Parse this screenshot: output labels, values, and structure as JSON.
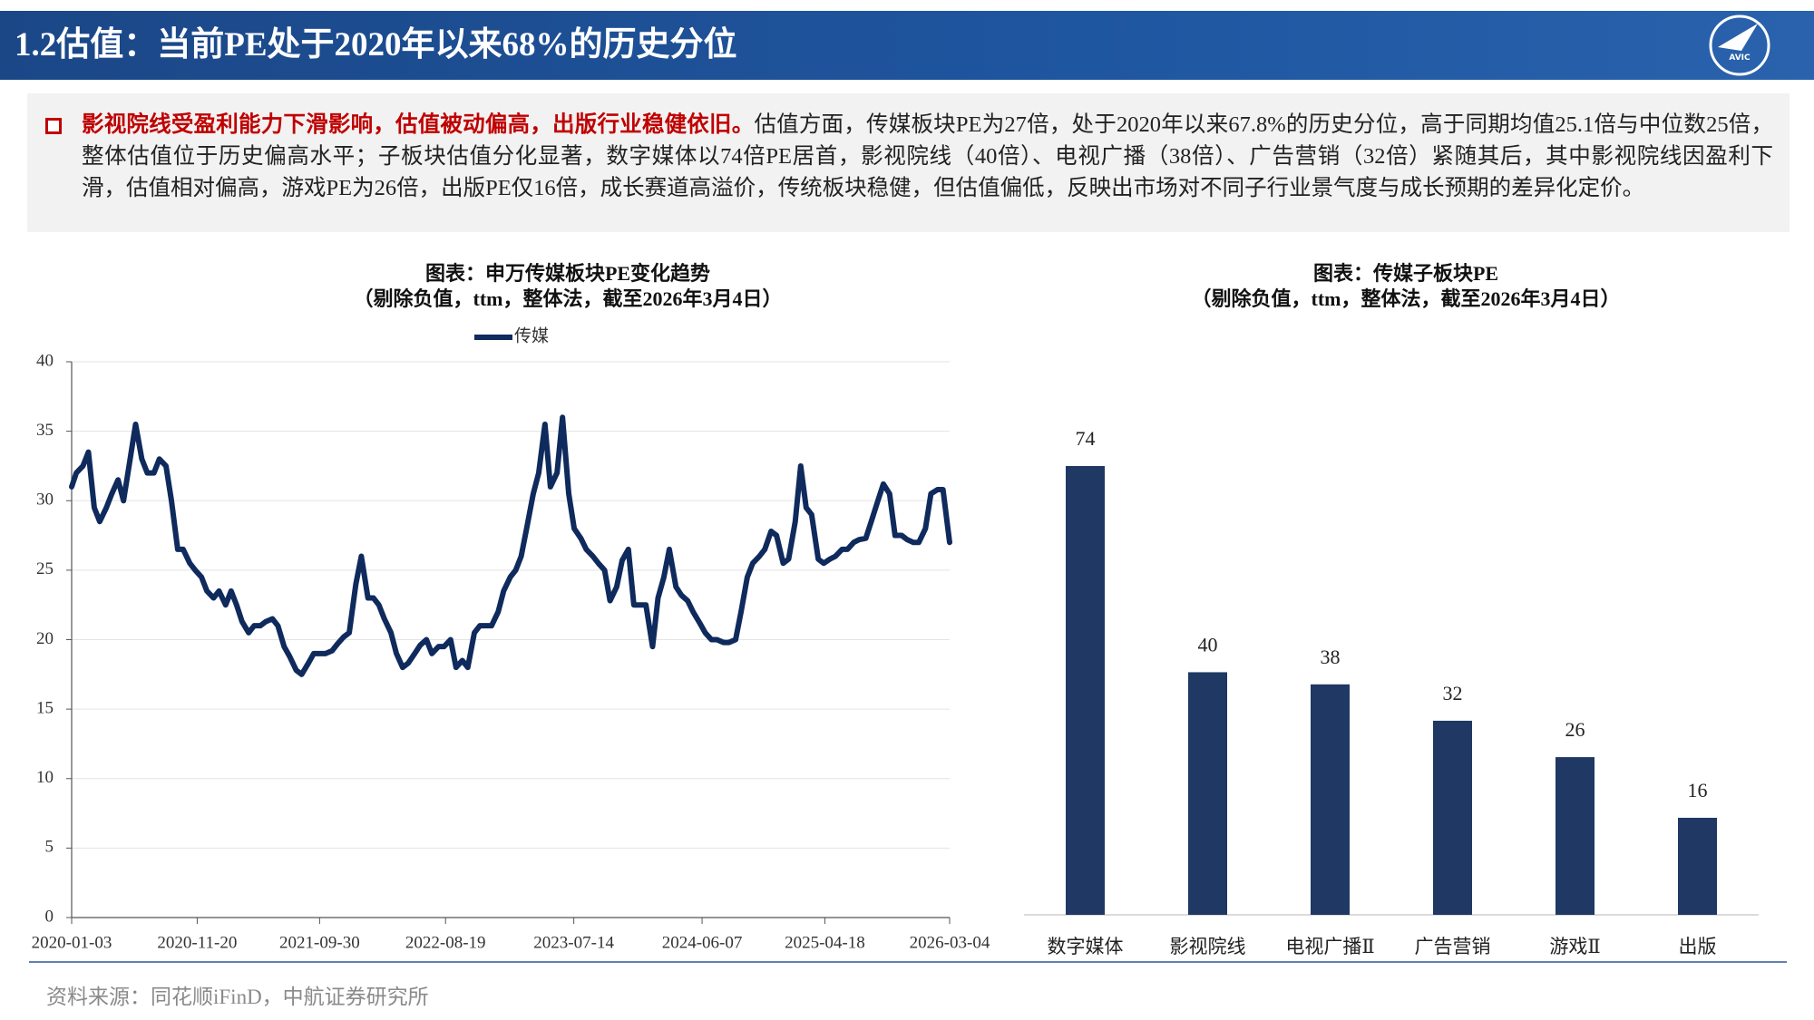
{
  "header": {
    "title": "1.2估值：当前PE处于2020年以来68%的历史分位",
    "logo": "AVIC"
  },
  "summary": {
    "highlight": "影视院线受盈利能力下滑影响，估值被动偏高，出版行业稳健依旧。",
    "body": "估值方面，传媒板块PE为27倍，处于2020年以来67.8%的历史分位，高于同期均值25.1倍与中位数25倍，整体估值位于历史偏高水平；子板块估值分化显著，数字媒体以74倍PE居首，影视院线（40倍）、电视广播（38倍）、广告营销（32倍）紧随其后，其中影视院线因盈利下滑，估值相对偏高，游戏PE为26倍，出版PE仅16倍，成长赛道高溢价，传统板块稳健，但估值偏低，反映出市场对不同子行业景气度与成长预期的差异化定价。"
  },
  "chart_data": [
    {
      "type": "line",
      "title": "图表：申万传媒板块PE变化趋势",
      "subtitle": "（剔除负值，ttm，整体法，截至2026年3月4日）",
      "x": [
        "2020-01-03",
        "2020-01-15",
        "2020-02-01",
        "2020-02-15",
        "2020-03-01",
        "2020-03-15",
        "2020-04-01",
        "2020-04-15",
        "2020-05-01",
        "2020-05-15",
        "2020-06-01",
        "2020-06-15",
        "2020-07-01",
        "2020-07-15",
        "2020-08-01",
        "2020-08-15",
        "2020-09-01",
        "2020-09-15",
        "2020-10-01",
        "2020-10-15",
        "2020-11-01",
        "2020-11-15",
        "2020-12-01",
        "2020-12-15",
        "2021-01-01",
        "2021-01-15",
        "2021-02-01",
        "2021-02-15",
        "2021-03-01",
        "2021-03-15",
        "2021-04-01",
        "2021-04-15",
        "2021-05-01",
        "2021-05-15",
        "2021-06-01",
        "2021-06-15",
        "2021-07-01",
        "2021-07-15",
        "2021-08-01",
        "2021-08-15",
        "2021-09-01",
        "2021-09-15",
        "2021-10-01",
        "2021-10-15",
        "2021-11-01",
        "2021-11-15",
        "2021-12-01",
        "2021-12-15",
        "2022-01-01",
        "2022-01-15",
        "2022-02-01",
        "2022-02-15",
        "2022-03-01",
        "2022-03-15",
        "2022-04-01",
        "2022-04-15",
        "2022-05-01",
        "2022-05-15",
        "2022-06-01",
        "2022-06-15",
        "2022-07-01",
        "2022-07-15",
        "2022-08-01",
        "2022-08-15",
        "2022-09-01",
        "2022-09-15",
        "2022-10-01",
        "2022-10-15",
        "2022-11-01",
        "2022-11-15",
        "2022-12-01",
        "2022-12-15",
        "2023-01-01",
        "2023-01-15",
        "2023-02-01",
        "2023-02-15",
        "2023-03-01",
        "2023-03-15",
        "2023-04-01",
        "2023-04-15",
        "2023-05-01",
        "2023-05-15",
        "2023-06-01",
        "2023-06-15",
        "2023-07-01",
        "2023-07-15",
        "2023-08-01",
        "2023-08-15",
        "2023-09-01",
        "2023-09-15",
        "2023-10-01",
        "2023-10-15",
        "2023-11-01",
        "2023-11-15",
        "2023-12-01",
        "2023-12-15",
        "2024-01-01",
        "2024-01-15",
        "2024-02-01",
        "2024-02-15",
        "2024-03-01",
        "2024-03-15",
        "2024-04-01",
        "2024-04-15",
        "2024-05-01",
        "2024-05-15",
        "2024-06-01",
        "2024-06-15",
        "2024-07-01",
        "2024-07-15",
        "2024-08-01",
        "2024-08-15",
        "2024-09-01",
        "2024-09-15",
        "2024-10-01",
        "2024-10-15",
        "2024-11-01",
        "2024-11-15",
        "2024-12-01",
        "2024-12-15",
        "2025-01-01",
        "2025-01-15",
        "2025-02-01",
        "2025-02-15",
        "2025-03-01",
        "2025-03-15",
        "2025-04-01",
        "2025-04-15",
        "2025-05-01",
        "2025-05-15",
        "2025-06-01",
        "2025-06-15",
        "2025-07-01",
        "2025-07-15",
        "2025-08-01",
        "2025-08-15",
        "2025-09-01",
        "2025-09-15",
        "2025-10-01",
        "2025-10-15",
        "2025-11-01",
        "2025-11-15",
        "2025-12-01",
        "2025-12-15",
        "2026-01-01",
        "2026-01-15",
        "2026-02-01",
        "2026-02-15",
        "2026-03-04"
      ],
      "series": [
        {
          "name": "传媒",
          "color": "#0f2a5c",
          "values": [
            31,
            32,
            32.5,
            33.5,
            29.5,
            28.5,
            29.5,
            30.5,
            31.5,
            30,
            33,
            35.5,
            33,
            32,
            32,
            33,
            32.5,
            30,
            26.5,
            26.5,
            25.5,
            25,
            24.5,
            23.5,
            23,
            23.5,
            22.5,
            23.5,
            22.5,
            21.3,
            20.5,
            21,
            21,
            21.3,
            21.5,
            21,
            19.5,
            18.8,
            17.8,
            17.5,
            18.3,
            19,
            19,
            19,
            19.2,
            19.7,
            20.2,
            20.5,
            24,
            26,
            23,
            23,
            22.5,
            21.5,
            20.5,
            19,
            18,
            18.3,
            19,
            19.6,
            20,
            19,
            19.5,
            19.5,
            20,
            18,
            18.5,
            18,
            20.5,
            21,
            21,
            21,
            22,
            23.5,
            24.5,
            25,
            26,
            28,
            30.5,
            32,
            35.5,
            31,
            32,
            36,
            30.5,
            28,
            27.3,
            26.5,
            26,
            25.5,
            25,
            22.8,
            23.8,
            25.7,
            26.5,
            22.5,
            22.5,
            22.5,
            19.5,
            23,
            24.5,
            26.5,
            23.8,
            23.2,
            22.8,
            22,
            21.2,
            20.5,
            20,
            20,
            19.8,
            19.8,
            20,
            22,
            24.5,
            25.5,
            26,
            26.5,
            27.8,
            27.5,
            25.5,
            25.8,
            28.5,
            32.5,
            29.5,
            29,
            25.8,
            25.5,
            25.8,
            26,
            26.5,
            26.5,
            27,
            27.2,
            27.3,
            28.5,
            30,
            31.2,
            30.5,
            27.5,
            27.5,
            27.2,
            27,
            27,
            28,
            30.5,
            30.8,
            30.8,
            27
          ]
        }
      ],
      "xlim": [
        "2020-01-03",
        "2026-03-04"
      ],
      "xticks": [
        "2020-01-03",
        "2020-11-20",
        "2021-09-30",
        "2022-08-19",
        "2023-07-14",
        "2024-06-07",
        "2025-04-18",
        "2026-03-04"
      ],
      "ylim": [
        0,
        40
      ],
      "yticks": [
        0,
        5,
        10,
        15,
        20,
        25,
        30,
        35,
        40
      ],
      "grid": true,
      "legend": "top"
    },
    {
      "type": "bar",
      "title": "图表：传媒子板块PE",
      "subtitle": "（剔除负值，ttm，整体法，截至2026年3月4日）",
      "categories": [
        "数字媒体",
        "影视院线",
        "电视广播Ⅱ",
        "广告营销",
        "游戏Ⅱ",
        "出版"
      ],
      "values": [
        74,
        40,
        38,
        32,
        26,
        16
      ],
      "color": "#1f3864"
    }
  ],
  "source": "资料来源：同花顺iFinD，中航证券研究所"
}
